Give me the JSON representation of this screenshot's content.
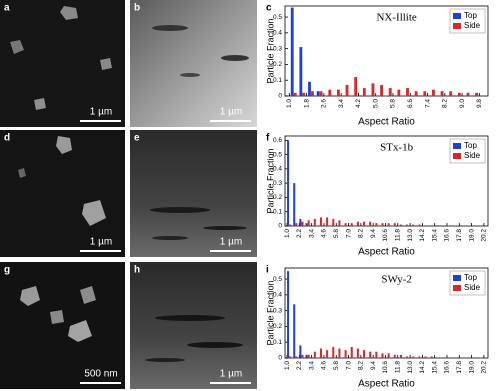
{
  "panels": [
    {
      "label": "a",
      "scale_bar": "1 µm"
    },
    {
      "label": "b",
      "scale_bar": "1 µm"
    },
    {
      "label": "d",
      "scale_bar": "1 µm"
    },
    {
      "label": "e",
      "scale_bar": "1 µm"
    },
    {
      "label": "g",
      "scale_bar": "500 nm"
    },
    {
      "label": "h",
      "scale_bar": "1 µm"
    }
  ],
  "chart_data": [
    {
      "type": "bar",
      "panel_label": "c",
      "title": "NX-Illite",
      "x_label": "Aspect Ratio",
      "y_label": "Particle Fraction",
      "x": [
        1.2,
        1.6,
        2.0,
        2.4,
        2.8,
        3.2,
        3.6,
        4.0,
        4.4,
        4.8,
        5.2,
        5.6,
        6.0,
        6.4,
        6.8,
        7.2,
        7.6,
        8.0,
        8.4,
        8.8,
        9.2,
        9.6
      ],
      "series": [
        {
          "name": "Top",
          "color": "#1f3fd6",
          "values": [
            0.56,
            0.31,
            0.09,
            0.03,
            0,
            0,
            0,
            0,
            0,
            0,
            0,
            0,
            0,
            0,
            0,
            0,
            0,
            0,
            0,
            0,
            0,
            0
          ]
        },
        {
          "name": "Side",
          "color": "#e0242a",
          "values": [
            0.02,
            0.02,
            0.03,
            0.03,
            0.04,
            0.04,
            0.07,
            0.12,
            0.05,
            0.08,
            0.07,
            0.05,
            0.04,
            0.05,
            0.03,
            0.03,
            0.04,
            0.03,
            0.03,
            0.02,
            0.02,
            0.02
          ]
        }
      ],
      "xlim": [
        0.8,
        10.2
      ],
      "ylim": [
        0,
        0.57
      ],
      "xticks": [
        {
          "value": 1,
          "label": "1.0"
        },
        1.8,
        2.6,
        3.4,
        4.2,
        {
          "value": 5,
          "label": "5.0"
        },
        5.8,
        6.6,
        7.4,
        8.2,
        {
          "value": 9,
          "label": "9.0"
        },
        9.8
      ],
      "yticks": [
        0,
        0.1,
        0.2,
        0.3,
        0.4,
        0.5
      ],
      "legend": "top-right"
    },
    {
      "type": "bar",
      "panel_label": "f",
      "title": "STx-1b",
      "x_label": "Aspect Ratio",
      "y_label": "Particle Fraction",
      "x": [
        1.2,
        1.8,
        2.4,
        3.0,
        3.6,
        4.2,
        4.8,
        5.4,
        6.0,
        6.6,
        7.2,
        7.8,
        8.4,
        9.0,
        9.6,
        10.2,
        10.8,
        11.4,
        12.0,
        12.6,
        13.2,
        13.8,
        14.4,
        15.0,
        15.6,
        16.2,
        16.8,
        17.4,
        18.0,
        18.6,
        19.2,
        19.8
      ],
      "series": [
        {
          "name": "Top",
          "color": "#1f3fd6",
          "values": [
            0.6,
            0.3,
            0.05,
            0.02,
            0,
            0,
            0,
            0,
            0,
            0,
            0,
            0,
            0,
            0,
            0,
            0,
            0,
            0,
            0,
            0,
            0,
            0,
            0,
            0,
            0,
            0,
            0,
            0,
            0,
            0,
            0,
            0
          ]
        },
        {
          "name": "Side",
          "color": "#e0242a",
          "values": [
            0.01,
            0.02,
            0.03,
            0.04,
            0.05,
            0.06,
            0.06,
            0.05,
            0.04,
            0.02,
            0.02,
            0.03,
            0.03,
            0.03,
            0.02,
            0.02,
            0.02,
            0.02,
            0.01,
            0.01,
            0.01,
            0.01,
            0.005,
            0.005,
            0,
            0,
            0,
            0,
            0,
            0,
            0,
            0
          ]
        }
      ],
      "xlim": [
        0.8,
        20.6
      ],
      "ylim": [
        0,
        0.63
      ],
      "xticks": [
        {
          "value": 1,
          "label": "1.0"
        },
        2.2,
        3.4,
        4.6,
        5.8,
        {
          "value": 7,
          "label": "7.0"
        },
        8.2,
        9.4,
        10.6,
        11.8,
        {
          "value": 13,
          "label": "13.0"
        },
        14.2,
        15.4,
        16.6,
        17.8,
        {
          "value": 19,
          "label": "19.0"
        },
        20.2
      ],
      "yticks": [
        0,
        0.1,
        0.2,
        0.3,
        0.4,
        0.5,
        0.6
      ],
      "legend": "top-right"
    },
    {
      "type": "bar",
      "panel_label": "i",
      "title": "SWy-2",
      "x_label": "Aspect Ratio",
      "y_label": "Particle Fraction",
      "x": [
        1.2,
        1.8,
        2.4,
        3.0,
        3.6,
        4.2,
        4.8,
        5.4,
        6.0,
        6.6,
        7.2,
        7.8,
        8.4,
        9.0,
        9.6,
        10.2,
        10.8,
        11.4,
        12.0,
        12.6,
        13.2,
        13.8,
        14.4,
        15.0,
        15.6,
        16.2,
        16.8,
        17.4,
        18.0,
        18.6,
        19.2,
        19.8
      ],
      "series": [
        {
          "name": "Top",
          "color": "#1f3fd6",
          "values": [
            0.55,
            0.34,
            0.08,
            0.02,
            0,
            0,
            0,
            0,
            0,
            0,
            0,
            0,
            0,
            0,
            0,
            0,
            0,
            0,
            0,
            0,
            0,
            0,
            0,
            0,
            0,
            0,
            0,
            0,
            0,
            0,
            0,
            0
          ]
        },
        {
          "name": "Side",
          "color": "#e0242a",
          "values": [
            0.01,
            0.01,
            0.02,
            0.02,
            0.04,
            0.06,
            0.05,
            0.07,
            0.06,
            0.05,
            0.07,
            0.06,
            0.05,
            0.04,
            0.04,
            0.03,
            0.03,
            0.02,
            0.02,
            0.01,
            0.01,
            0.01,
            0.01,
            0.01,
            0,
            0,
            0,
            0,
            0,
            0,
            0,
            0
          ]
        }
      ],
      "xlim": [
        0.8,
        20.6
      ],
      "ylim": [
        0,
        0.57
      ],
      "xticks": [
        {
          "value": 1,
          "label": "1.0"
        },
        2.2,
        3.4,
        4.6,
        5.8,
        {
          "value": 7,
          "label": "7.0"
        },
        8.2,
        9.4,
        10.6,
        11.8,
        {
          "value": 13,
          "label": "13.0"
        },
        14.2,
        15.4,
        16.6,
        17.8,
        {
          "value": 19,
          "label": "19.0"
        },
        20.2
      ],
      "yticks": [
        0,
        0.1,
        0.2,
        0.3,
        0.4,
        0.5
      ],
      "legend": "top-right"
    }
  ]
}
